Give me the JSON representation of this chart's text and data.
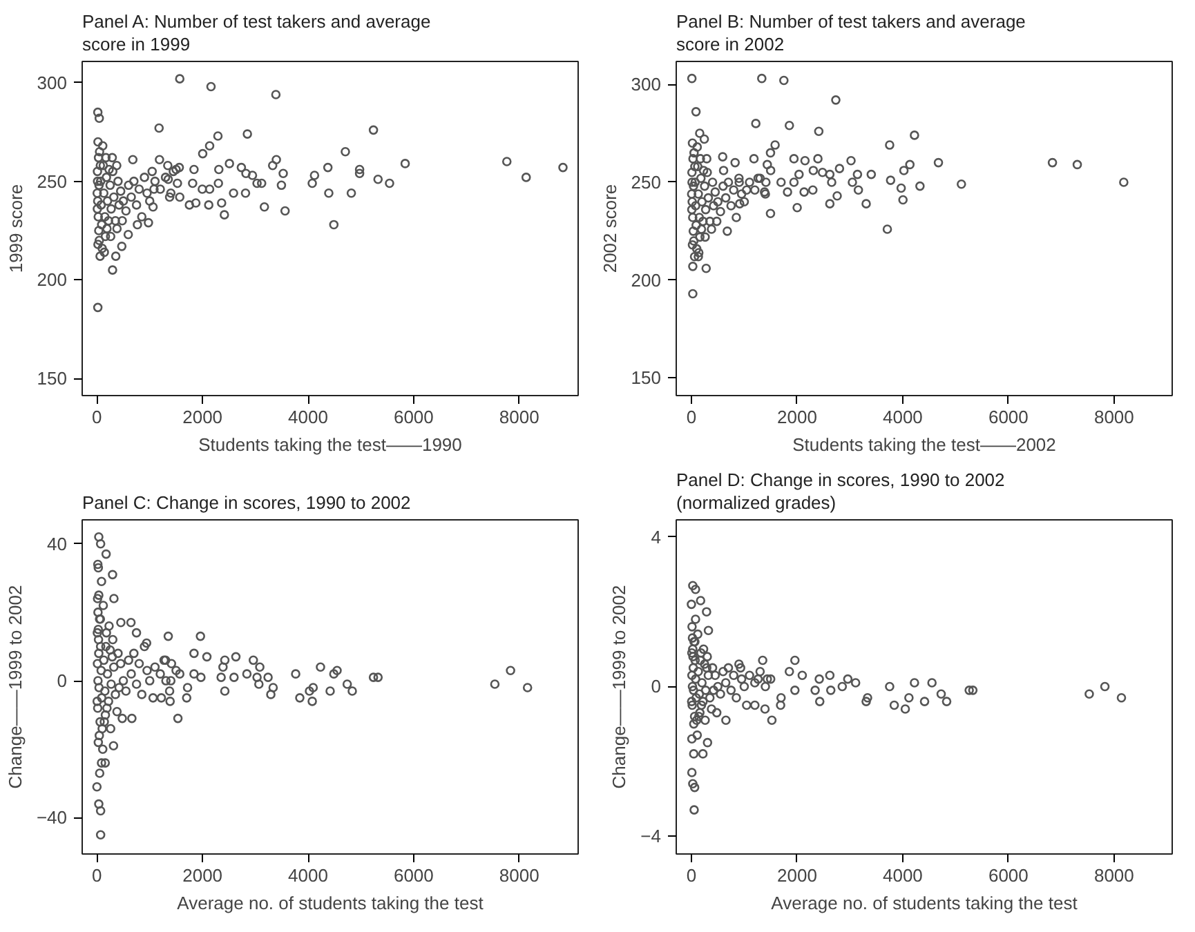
{
  "chart_data": [
    {
      "type": "scatter",
      "title": "Panel A: Number of test takers and average score in 1999",
      "xlabel": "Students taking the test——1990",
      "ylabel": "1999 score",
      "marker": "circle",
      "color": "#555555",
      "xlim": [
        -279,
        9116
      ],
      "ylim": [
        141.3,
        310.8
      ],
      "xticks": [
        0,
        2000,
        4000,
        6000,
        8000
      ],
      "yticks": [
        150,
        200,
        250,
        300
      ],
      "x": [
        1569,
        2161,
        3390,
        17,
        44,
        17,
        296,
        1177,
        2850,
        5238,
        2292,
        2135,
        4706,
        2004,
        1185,
        5839,
        7765,
        8828,
        8131,
        4375,
        4976,
        4976,
        5325,
        5543,
        4122,
        4079,
        4392,
        4819,
        4488,
        3399,
        3329,
        3529,
        3495,
        3564,
        3172,
        2510,
        2309,
        2736,
        2823,
        2946,
        3033,
        3120,
        2815,
        2588,
        2301,
        2362,
        2414,
        2118,
        2135,
        1996,
        1874,
        1752,
        1813,
        1839,
        1560,
        1525,
        1569,
        1377,
        1351,
        1342,
        1447,
        1046,
        1081,
        1063,
        976,
        767,
        680,
        375,
        357,
        471,
        593,
        20,
        30,
        10,
        40,
        15,
        25,
        35,
        20,
        60,
        50,
        70,
        80,
        90,
        100,
        120,
        130,
        150,
        160,
        180,
        200,
        220,
        250,
        270,
        300,
        320,
        350,
        400,
        420,
        450,
        500,
        550,
        600,
        650,
        700,
        750,
        800,
        850,
        900,
        950,
        1000,
        1100,
        1200,
        1300,
        1400,
        1500,
        5,
        8,
        12,
        45,
        65,
        110,
        140,
        170,
        190,
        230,
        260,
        290,
        380,
        480
      ],
      "values": [
        302,
        298,
        294,
        285,
        282,
        186,
        205,
        277,
        274,
        276,
        273,
        268,
        265,
        264,
        261,
        259,
        260,
        257,
        252,
        257,
        256,
        254,
        251,
        249,
        253,
        249,
        244,
        244,
        228,
        261,
        258,
        254,
        248,
        235,
        237,
        259,
        256,
        257,
        254,
        253,
        249,
        249,
        244,
        244,
        249,
        239,
        233,
        238,
        246,
        246,
        239,
        238,
        249,
        256,
        257,
        249,
        242,
        242,
        251,
        258,
        255,
        255,
        246,
        237,
        229,
        228,
        261,
        258,
        212,
        217,
        223,
        270,
        262,
        255,
        248,
        240,
        232,
        225,
        218,
        212,
        265,
        250,
        238,
        228,
        216,
        258,
        244,
        232,
        222,
        252,
        240,
        230,
        248,
        236,
        255,
        242,
        230,
        250,
        238,
        245,
        240,
        235,
        248,
        242,
        250,
        238,
        246,
        232,
        252,
        244,
        240,
        250,
        246,
        252,
        244,
        256,
        244,
        236,
        250,
        220,
        258,
        268,
        214,
        262,
        226,
        256,
        222,
        262,
        226,
        230
      ]
    },
    {
      "type": "scatter",
      "title": "Panel B: Number of test takers and average score in 2002",
      "xlabel": "Students taking the test——2002",
      "ylabel": "2002 score",
      "marker": "circle",
      "color": "#555555",
      "xlim": [
        -287,
        9100
      ],
      "ylim": [
        141,
        311.7
      ],
      "xticks": [
        0,
        2000,
        4000,
        6000,
        8000
      ],
      "yticks": [
        150,
        200,
        250,
        300
      ],
      "x": [
        9,
        1332,
        1750,
        2733,
        1219,
        1854,
        2411,
        4222,
        3752,
        1584,
        4675,
        6833,
        7303,
        8183,
        5110,
        4326,
        4135,
        4022,
        3970,
        4004,
        3770,
        3708,
        3404,
        3308,
        3021,
        3143,
        3160,
        3047,
        2759,
        2803,
        2620,
        2655,
        2620,
        2394,
        2481,
        2298,
        2307,
        2150,
        1941,
        2037,
        2002,
        2133,
        1819,
        1941,
        1697,
        1497,
        1436,
        1410,
        1384,
        1497,
        1184,
        1262,
        1045,
        905,
        914,
        679,
        279,
        26,
        26,
        131,
        87,
        157,
        244,
        592,
        609,
        827,
        20,
        30,
        10,
        40,
        15,
        25,
        35,
        20,
        60,
        50,
        70,
        80,
        90,
        100,
        120,
        130,
        150,
        160,
        180,
        200,
        220,
        250,
        270,
        300,
        320,
        350,
        400,
        420,
        450,
        500,
        550,
        600,
        650,
        700,
        750,
        800,
        850,
        900,
        950,
        1000,
        1100,
        1200,
        1300,
        1400,
        1500,
        5,
        8,
        12,
        45,
        65,
        110,
        140,
        170,
        190,
        230,
        260,
        290,
        380,
        480
      ],
      "values": [
        303,
        303,
        302,
        292,
        280,
        279,
        276,
        274,
        269,
        269,
        260,
        260,
        259,
        250,
        249,
        248,
        259,
        256,
        247,
        241,
        251,
        226,
        254,
        239,
        261,
        254,
        246,
        250,
        243,
        257,
        254,
        250,
        239,
        262,
        255,
        246,
        256,
        261,
        262,
        254,
        237,
        245,
        245,
        250,
        250,
        265,
        259,
        250,
        245,
        234,
        262,
        252,
        246,
        250,
        239,
        225,
        206,
        193,
        207,
        212,
        286,
        275,
        272,
        263,
        256,
        260,
        270,
        262,
        255,
        248,
        240,
        232,
        225,
        218,
        212,
        265,
        250,
        238,
        228,
        216,
        258,
        244,
        232,
        222,
        252,
        240,
        230,
        248,
        236,
        255,
        242,
        230,
        250,
        238,
        245,
        240,
        235,
        248,
        242,
        250,
        238,
        246,
        232,
        252,
        244,
        240,
        250,
        246,
        252,
        244,
        256,
        244,
        236,
        250,
        220,
        258,
        268,
        214,
        262,
        226,
        256,
        222,
        262,
        226,
        230
      ]
    },
    {
      "type": "scatter",
      "title": "Panel C: Change in scores, 1990 to 2002",
      "xlabel": "Average no. of students taking the test",
      "ylabel": "Change——1999 to 2002",
      "marker": "circle",
      "color": "#555555",
      "xlim": [
        -279,
        9116
      ],
      "ylim": [
        -50.6,
        47
      ],
      "xticks": [
        0,
        2000,
        4000,
        6000,
        8000
      ],
      "yticks": [
        {
          "value": -40,
          "label": "−40"
        },
        0,
        40
      ],
      "x": [
        35,
        70,
        174,
        17,
        26,
        296,
        87,
        35,
        322,
        453,
        645,
        749,
        1351,
        1961,
        941,
        1839,
        2083,
        2632,
        2423,
        2963,
        1272,
        1412,
        3085,
        2388,
        4235,
        4549,
        4488,
        3765,
        7835,
        7538,
        8157,
        5238,
        5325,
        4741,
        4837,
        4418,
        4096,
        4026,
        4079,
        3843,
        3338,
        3294,
        3068,
        3033,
        2841,
        3242,
        2597,
        2353,
        2423,
        1970,
        1839,
        1717,
        1700,
        1534,
        1377,
        1386,
        1220,
        1063,
        1569,
        1307,
        314,
        87,
        157,
        52,
        0,
        35,
        70,
        70,
        26,
        662,
        20,
        30,
        10,
        40,
        15,
        25,
        35,
        20,
        60,
        50,
        70,
        80,
        90,
        100,
        120,
        130,
        150,
        160,
        180,
        200,
        220,
        250,
        270,
        300,
        320,
        350,
        400,
        420,
        450,
        500,
        550,
        600,
        650,
        700,
        750,
        800,
        850,
        900,
        950,
        1000,
        1100,
        1200,
        1300,
        1400,
        1500,
        5,
        8,
        12,
        45,
        65,
        110,
        140,
        170,
        190,
        230,
        260,
        290,
        380,
        480
      ],
      "values": [
        42,
        40,
        37,
        34,
        33,
        31,
        29,
        25,
        24,
        17,
        17,
        14,
        13,
        13,
        11,
        8,
        7,
        7,
        6,
        6,
        6,
        5,
        4,
        4,
        4,
        3,
        2,
        2,
        3,
        -1,
        -2,
        1,
        1,
        -1,
        -3,
        -3,
        -2,
        -3,
        -6,
        -5,
        -2,
        -4,
        -1,
        1,
        2,
        1,
        1,
        1,
        -3,
        1,
        2,
        -2,
        -5,
        -11,
        -3,
        -6,
        -5,
        -5,
        2,
        0,
        -19,
        -24,
        -24,
        -27,
        -31,
        -36,
        -38,
        -45,
        -18,
        -11,
        20,
        12,
        5,
        -2,
        -8,
        15,
        8,
        0,
        -12,
        18,
        10,
        3,
        -5,
        -14,
        22,
        6,
        -3,
        -10,
        14,
        2,
        -6,
        9,
        -1,
        12,
        4,
        -4,
        8,
        -2,
        5,
        0,
        -3,
        6,
        2,
        8,
        -1,
        5,
        -4,
        10,
        3,
        0,
        4,
        2,
        6,
        0,
        3,
        -6,
        14,
        24,
        -16,
        18,
        -20,
        -12,
        10,
        -8,
        16,
        -14,
        7,
        -9,
        -11
      ]
    },
    {
      "type": "scatter",
      "title": "Panel D: Change in scores, 1990 to 2002 (normalized grades)",
      "xlabel": "Average no. of students taking the test",
      "ylabel": "Change——1999 to 2002",
      "marker": "circle",
      "color": "#555555",
      "xlim": [
        -287,
        9100
      ],
      "ylim": [
        -4.48,
        4.46
      ],
      "xticks": [
        0,
        2000,
        4000,
        6000,
        8000
      ],
      "yticks": [
        {
          "value": -4,
          "label": "−4"
        },
        0,
        4
      ],
      "x": [
        26,
        78,
        0,
        174,
        287,
        78,
        322,
        1349,
        1959,
        931,
        4222,
        4553,
        7826,
        7530,
        8139,
        5258,
        5327,
        4727,
        4831,
        4413,
        4117,
        4048,
        3839,
        3752,
        3308,
        3334,
        3108,
        2960,
        2855,
        2638,
        2429,
        2342,
        2420,
        2620,
        2098,
        1854,
        1959,
        1697,
        1688,
        1523,
        1393,
        1201,
        1045,
        1436,
        1262,
        305,
        218,
        44,
        9,
        26,
        61,
        52,
        9,
        653,
        20,
        30,
        10,
        40,
        15,
        25,
        35,
        20,
        60,
        50,
        70,
        80,
        90,
        100,
        120,
        130,
        150,
        160,
        180,
        200,
        220,
        250,
        270,
        300,
        320,
        350,
        400,
        420,
        450,
        500,
        550,
        600,
        650,
        700,
        750,
        800,
        850,
        900,
        950,
        1000,
        1100,
        1200,
        1300,
        1400,
        1500,
        5,
        8,
        12,
        45,
        65,
        110,
        140,
        170,
        190,
        230,
        260,
        290,
        380,
        480
      ],
      "values": [
        2.7,
        2.6,
        2.2,
        2.3,
        2.0,
        1.8,
        1.5,
        0.7,
        0.7,
        0.5,
        0.1,
        0.1,
        0.0,
        -0.2,
        -0.3,
        -0.1,
        -0.1,
        -0.2,
        -0.4,
        -0.4,
        -0.3,
        -0.6,
        -0.5,
        0.0,
        -0.4,
        -0.3,
        0.1,
        0.2,
        0.0,
        -0.1,
        -0.4,
        -0.1,
        0.2,
        0.3,
        0.3,
        0.4,
        -0.1,
        -0.3,
        -0.5,
        -0.9,
        -0.6,
        -0.5,
        -0.5,
        0.2,
        0.2,
        -1.5,
        -1.8,
        -1.8,
        -2.3,
        -2.6,
        -2.7,
        -3.3,
        -1.4,
        -0.9,
        1.3,
        0.8,
        0.3,
        -0.1,
        -0.5,
        1.0,
        0.5,
        0,
        -0.8,
        1.2,
        0.7,
        0.2,
        -0.3,
        -0.9,
        1.4,
        0.4,
        -0.2,
        -0.7,
        0.9,
        0.1,
        -0.4,
        0.6,
        -0.1,
        0.8,
        0.3,
        -0.3,
        0.5,
        -0.1,
        0.3,
        0,
        -0.2,
        0.4,
        0.1,
        0.5,
        -0.1,
        0.3,
        -0.3,
        0.6,
        0.2,
        0,
        0.3,
        0.1,
        0.4,
        0,
        0.2,
        -0.4,
        0.9,
        1.6,
        -1.0,
        1.2,
        -1.3,
        -0.8,
        0.7,
        -0.5,
        1.0,
        -0.9,
        0.5,
        -0.6,
        -0.7
      ]
    }
  ]
}
